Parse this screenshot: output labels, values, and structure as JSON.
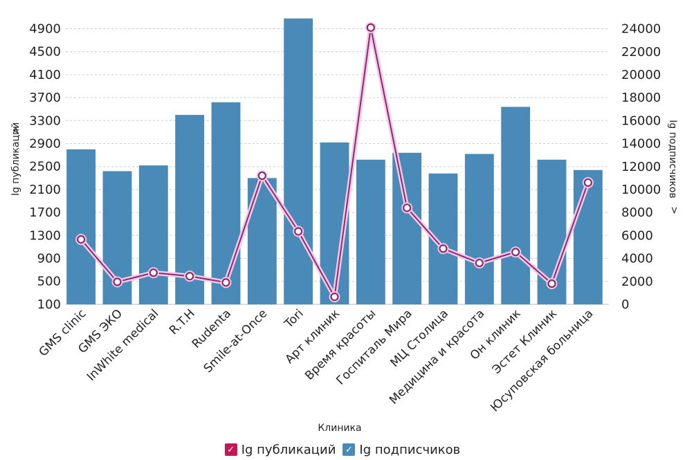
{
  "chart_data": {
    "type": "bar",
    "title": "",
    "xlabel": "Клиника",
    "ylabel_left": "Ig публикаций",
    "ylabel_right": "Ig подписчиков",
    "left_axis_ticks": [
      100,
      500,
      900,
      1300,
      1700,
      2100,
      2500,
      2900,
      3300,
      3700,
      4100,
      4500,
      4900
    ],
    "right_axis_ticks": [
      0,
      2000,
      4000,
      6000,
      8000,
      10000,
      12000,
      14000,
      16000,
      18000,
      20000,
      22000,
      24000
    ],
    "ylim_left": [
      0,
      5000
    ],
    "ylim_right": [
      0,
      25000
    ],
    "grid": true,
    "legend_position": "bottom",
    "categories": [
      "GMS clinic",
      "GMS ЭКО",
      "InWhite medical",
      "R.T.H",
      "Rudenta",
      "Smile-at-Once",
      "Tori",
      "Арт клиник",
      "Время красоты",
      "Госпиталь Мира",
      "МЦ Столица",
      "Медицина и красота",
      "Он клиник",
      "Эстет Клиник",
      "Юсуповская больница"
    ],
    "series": [
      {
        "name": "Ig публикаций",
        "type": "line",
        "axis": "left",
        "color": "#8e2a6b",
        "values": [
          1230,
          490,
          650,
          590,
          480,
          2340,
          1370,
          230,
          4920,
          1780,
          1070,
          820,
          1010,
          460,
          2220
        ]
      },
      {
        "name": "Ig подписчиков",
        "type": "bar",
        "axis": "right",
        "color": "#4a8ab8",
        "values": [
          13500,
          11600,
          12100,
          16500,
          17600,
          11000,
          24900,
          14100,
          12600,
          13200,
          11400,
          13100,
          17200,
          12600,
          11700
        ]
      }
    ],
    "legend_check_glyph": "✓"
  }
}
